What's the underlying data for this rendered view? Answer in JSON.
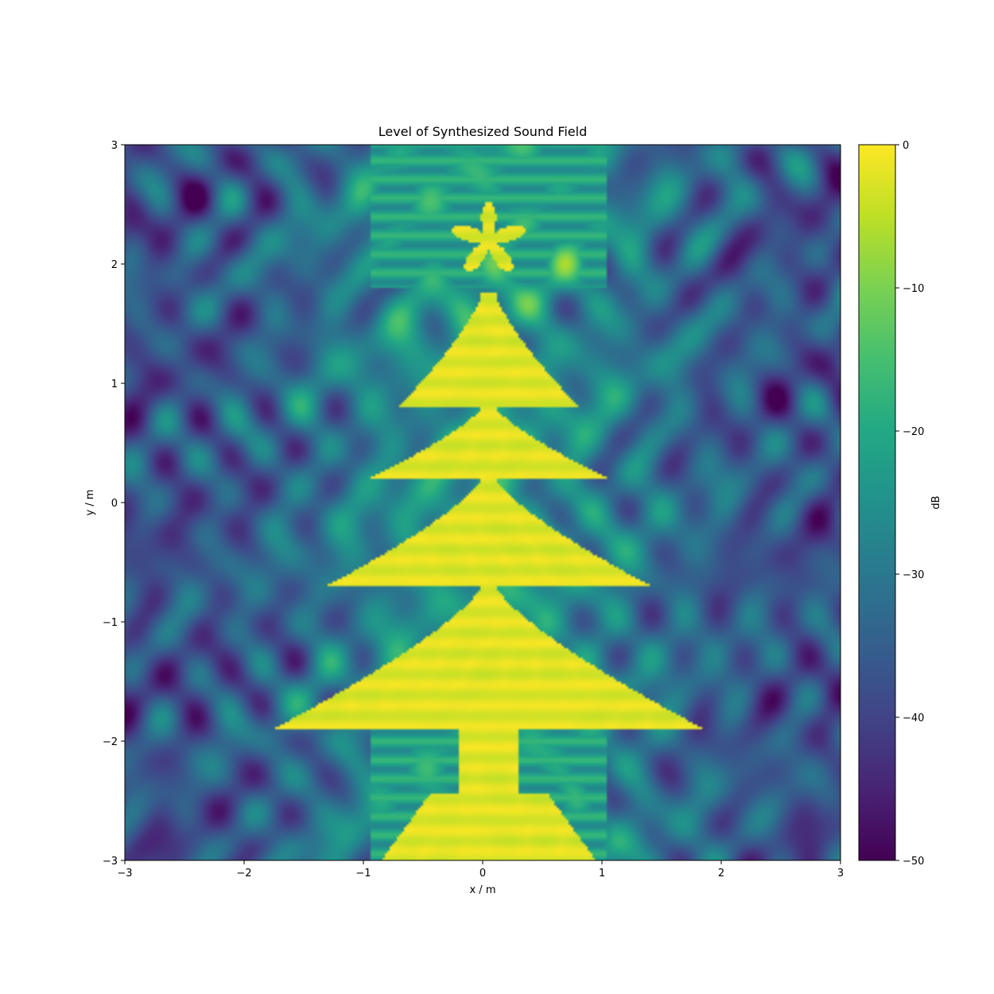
{
  "chart_data": {
    "type": "heatmap",
    "title": "Level of Synthesized Sound Field",
    "xlabel": "x / m",
    "ylabel": "y / m",
    "xlim": [
      -3,
      3
    ],
    "ylim": [
      -3,
      3
    ],
    "xticks": [
      -3,
      -2,
      -1,
      0,
      1,
      2,
      3
    ],
    "yticks": [
      -3,
      -2,
      -1,
      0,
      1,
      2,
      3
    ],
    "xtick_labels": [
      "−3",
      "−2",
      "−1",
      "0",
      "1",
      "2",
      "3"
    ],
    "ytick_labels": [
      "−3",
      "−2",
      "−1",
      "0",
      "1",
      "2",
      "3"
    ],
    "grid": false,
    "colorbar": {
      "label": "dB",
      "range": [
        -50,
        0
      ],
      "colormap": "viridis",
      "ticks": [
        0,
        -10,
        -20,
        -30,
        -40,
        -50
      ],
      "tick_labels": [
        "0",
        "−10",
        "−20",
        "−30",
        "−40",
        "−50"
      ]
    },
    "field_description": {
      "shape": "christmas-tree",
      "max_level_db": 0,
      "background_level_db": [
        -50,
        -25
      ],
      "tree_tiers": [
        {
          "y_top": 1.75,
          "y_bottom": 0.8,
          "half_width": 0.7
        },
        {
          "y_top": 0.8,
          "y_bottom": 0.2,
          "half_width": 0.95
        },
        {
          "y_top": 0.2,
          "y_bottom": -0.7,
          "half_width": 1.3
        },
        {
          "y_top": -0.7,
          "y_bottom": -1.9,
          "half_width": 1.75
        }
      ],
      "star_center": [
        0.05,
        2.2
      ],
      "star_radius": 0.32,
      "trunk": {
        "x_center": 0.05,
        "half_width": 0.25,
        "y_top": -1.9,
        "y_bottom": -2.45
      },
      "beam_below": {
        "half_width_top": 0.5,
        "half_width_bottom": 0.9,
        "y_top": -2.45,
        "y_bottom": -3
      }
    }
  }
}
